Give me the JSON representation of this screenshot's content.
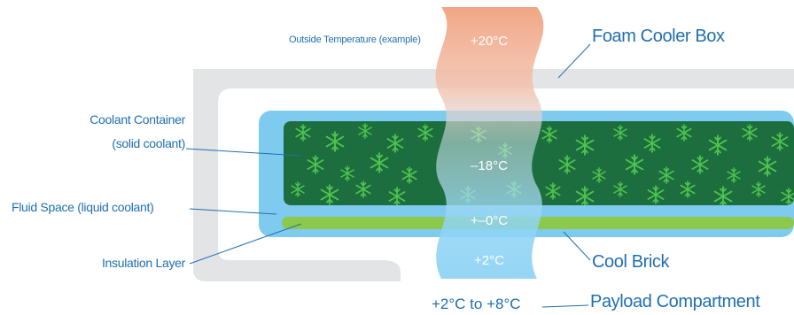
{
  "labels": {
    "outside_temperature": "Outside Temperature (example)",
    "foam_cooler_box": "Foam Cooler Box",
    "coolant_container_line1": "Coolant Container",
    "coolant_container_line2": "(solid coolant)",
    "fluid_space": "Fluid Space (liquid coolant)",
    "insulation_layer": "Insulation Layer",
    "cool_brick": "Cool Brick",
    "payload_compartment": "Payload Compartment"
  },
  "temperatures": {
    "outside": "+20°C",
    "coolant": "–18°C",
    "fluid": "+–0°C",
    "insulation": "+2°C",
    "payload_range": "+2°C to +8°C"
  },
  "colors": {
    "foam": "#e2e4e6",
    "fluid": "#7fcbef",
    "coolant": "#1c6e3e",
    "snowflake": "#4fc24f",
    "insulation": "#8cc84b",
    "warm": "#f0a98a",
    "cold": "#8fd4f4",
    "label": "#1f6fb3"
  },
  "icons": [
    "snowflake-icon"
  ]
}
